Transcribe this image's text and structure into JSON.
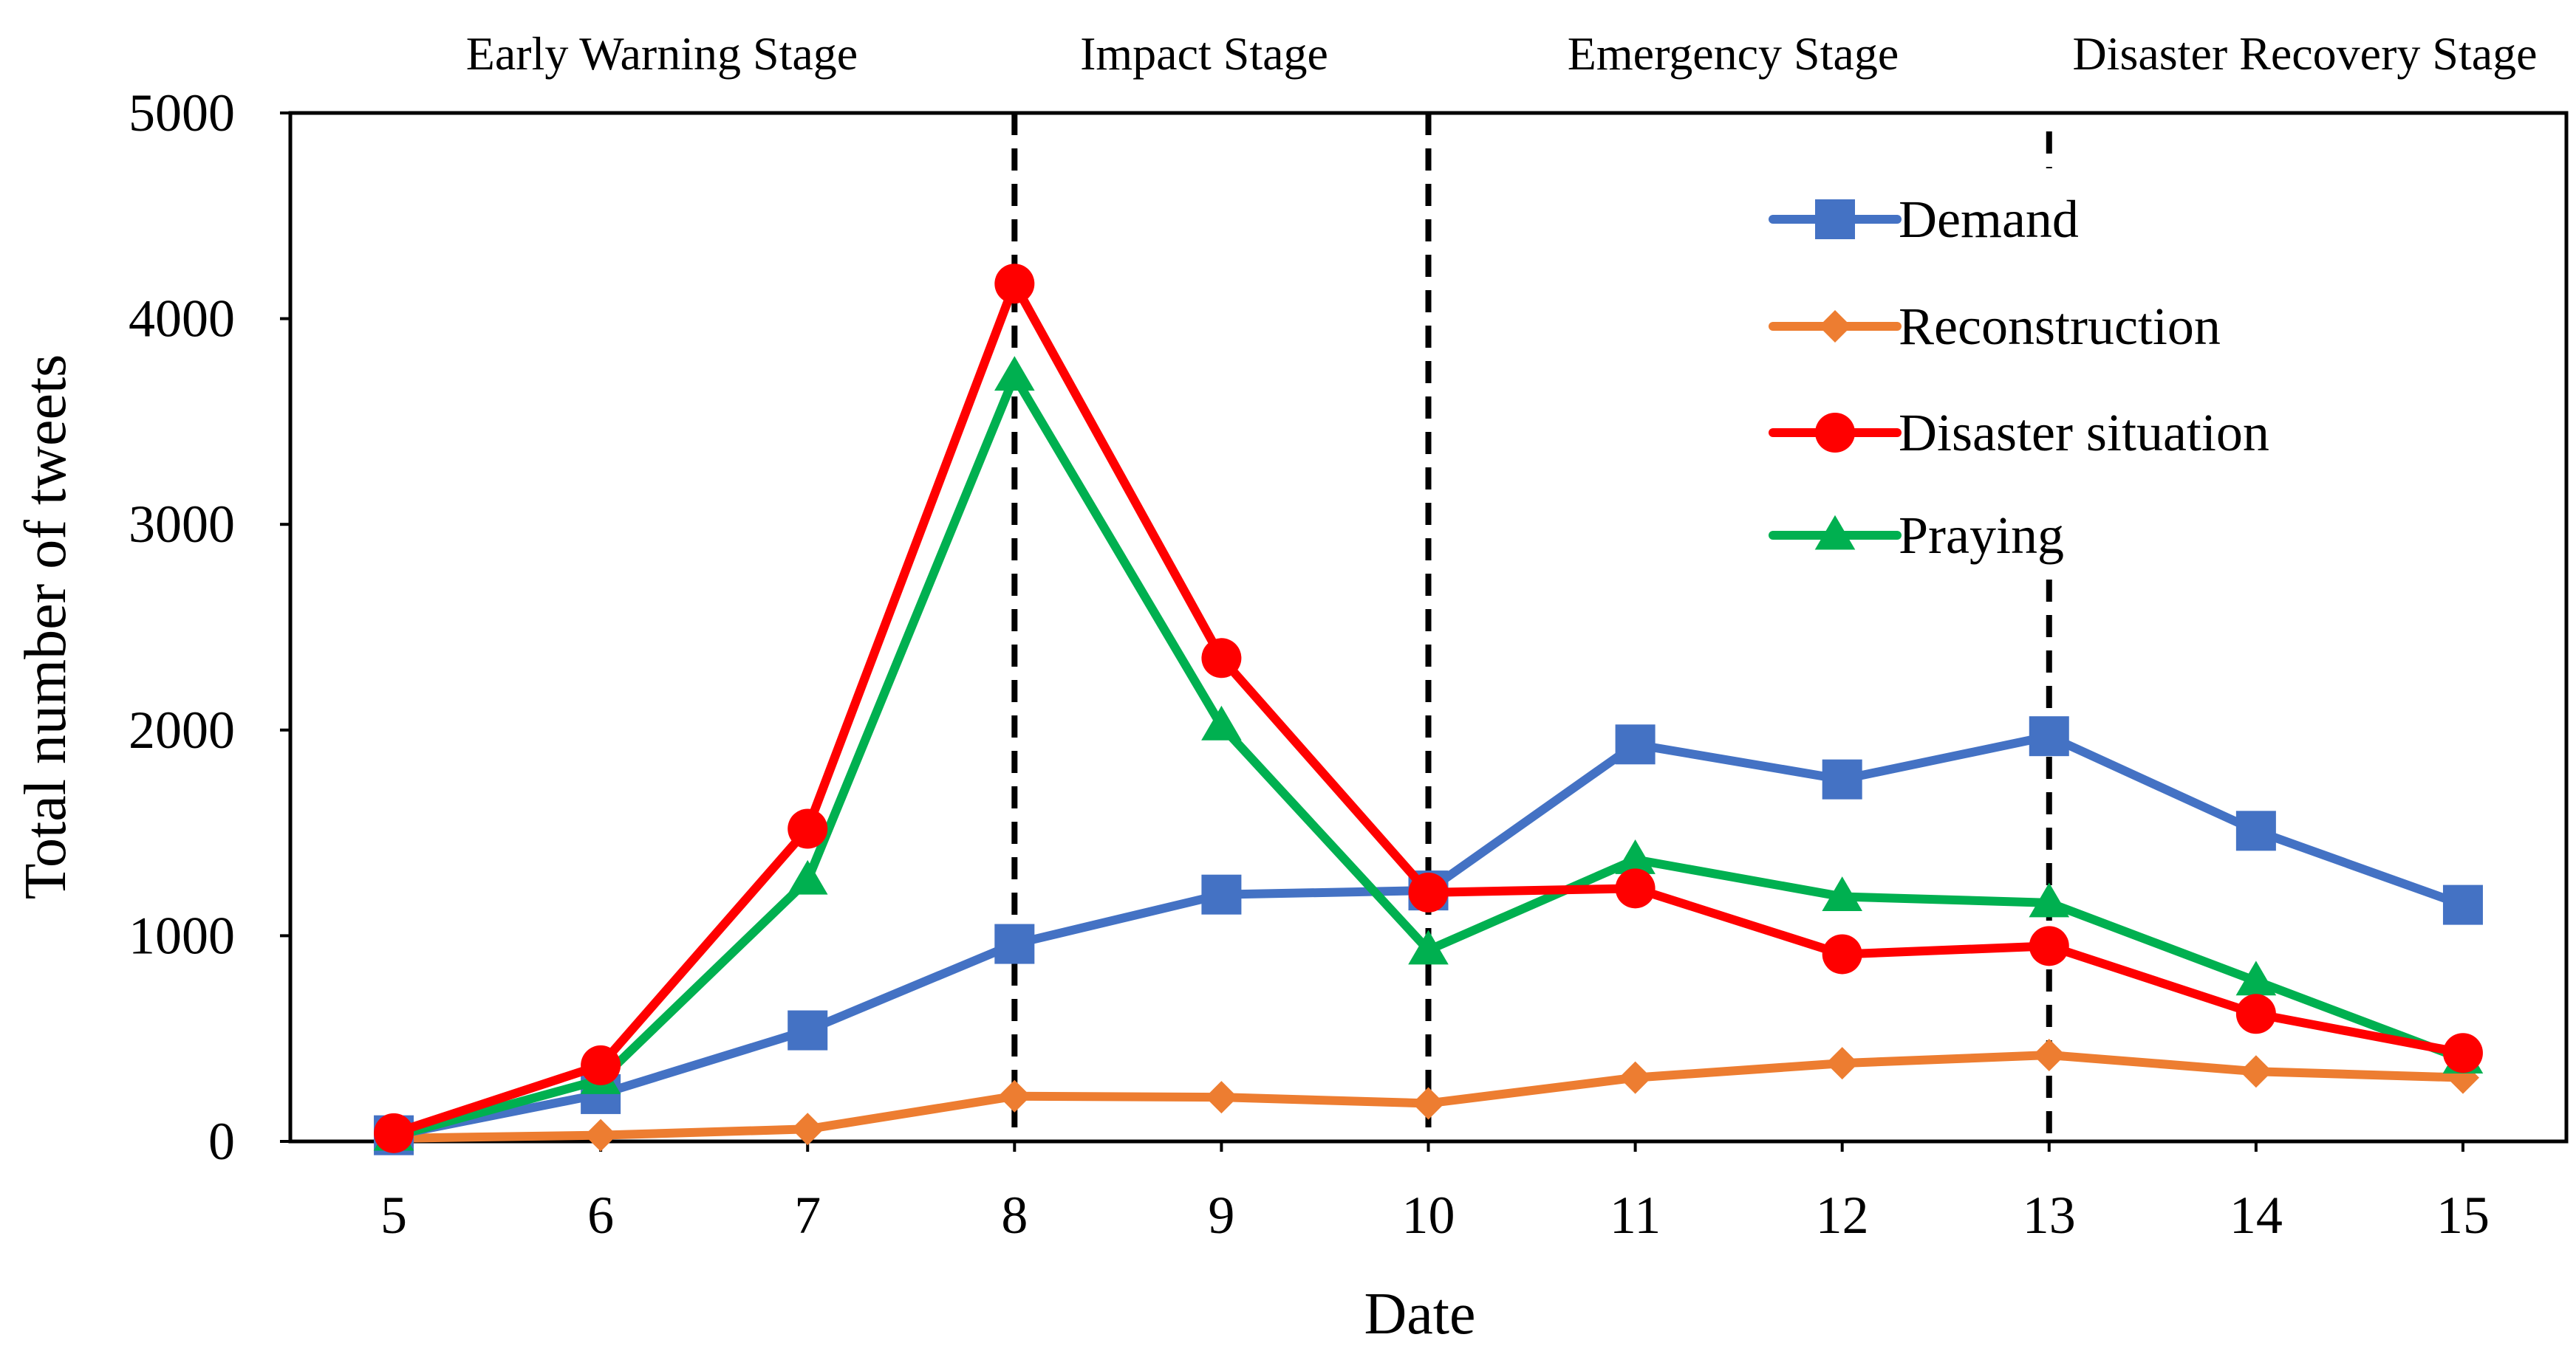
{
  "chart_data": {
    "type": "line",
    "title": "",
    "xlabel": "Date",
    "ylabel": "Total number of tweets",
    "x": [
      5,
      6,
      7,
      8,
      9,
      10,
      11,
      12,
      13,
      14,
      15
    ],
    "xlim": [
      4.5,
      15.5
    ],
    "ylim": [
      0,
      5000
    ],
    "yticks": [
      0,
      1000,
      2000,
      3000,
      4000,
      5000
    ],
    "grid": false,
    "legend_position": "top-right",
    "series": [
      {
        "name": "Demand",
        "color": "#4472C4",
        "marker": "square",
        "values": [
          30,
          230,
          540,
          960,
          1200,
          1220,
          1930,
          1760,
          1970,
          1510,
          1150
        ]
      },
      {
        "name": "Reconstruction",
        "color": "#ED7D31",
        "marker": "diamond",
        "values": [
          15,
          30,
          60,
          220,
          215,
          185,
          310,
          380,
          420,
          340,
          310
        ]
      },
      {
        "name": "Disaster situation",
        "color": "#FF0000",
        "marker": "circle",
        "values": [
          40,
          370,
          1520,
          4170,
          2350,
          1210,
          1230,
          910,
          950,
          620,
          430
        ]
      },
      {
        "name": "Praying",
        "color": "#00B050",
        "marker": "triangle",
        "values": [
          25,
          300,
          1270,
          3720,
          2020,
          930,
          1370,
          1190,
          1160,
          780,
          400
        ]
      }
    ],
    "stage_dividers": [
      8,
      10,
      13
    ],
    "stages": [
      {
        "label": "Early Warning Stage"
      },
      {
        "label": "Impact Stage"
      },
      {
        "label": "Emergency Stage"
      },
      {
        "label": "Disaster Recovery Stage"
      }
    ]
  }
}
